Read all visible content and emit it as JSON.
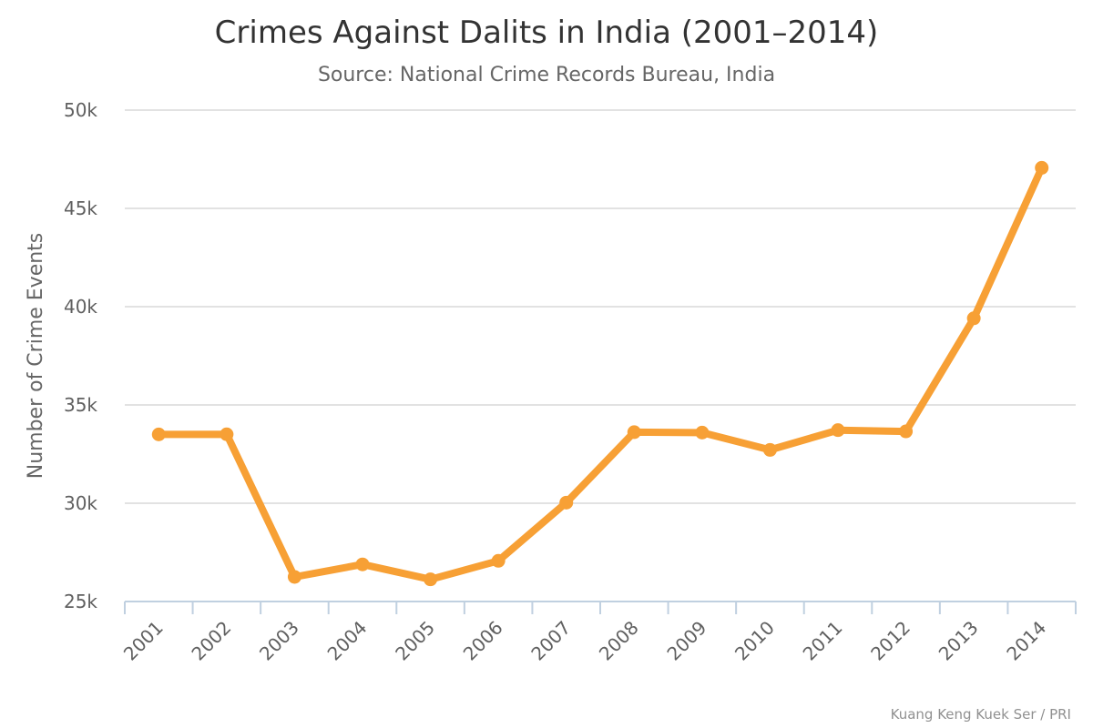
{
  "chart_data": {
    "type": "line",
    "title": "Crimes Against Dalits in India (2001–2014)",
    "subtitle": "Source: National Crime Records Bureau, India",
    "xlabel": "",
    "ylabel": "Number of Crime Events",
    "categories": [
      "2001",
      "2002",
      "2003",
      "2004",
      "2005",
      "2006",
      "2007",
      "2008",
      "2009",
      "2010",
      "2011",
      "2012",
      "2013",
      "2014"
    ],
    "series": [
      {
        "values": [
          33501,
          33507,
          26252,
          26887,
          26127,
          27070,
          30031,
          33615,
          33594,
          32712,
          33719,
          33655,
          39408,
          47064
        ]
      }
    ],
    "ylim": [
      25000,
      50000
    ],
    "yticks": [
      {
        "value": 25000,
        "label": "25k"
      },
      {
        "value": 30000,
        "label": "30k"
      },
      {
        "value": 35000,
        "label": "35k"
      },
      {
        "value": 40000,
        "label": "40k"
      },
      {
        "value": 45000,
        "label": "45k"
      },
      {
        "value": 50000,
        "label": "50k"
      }
    ],
    "grid": true,
    "legend": "none",
    "colors": {
      "line": "#f7a035",
      "grid": "#d8d8d8",
      "axis": "#c0d0e0"
    },
    "credit": "Kuang Keng Kuek Ser / PRI"
  }
}
